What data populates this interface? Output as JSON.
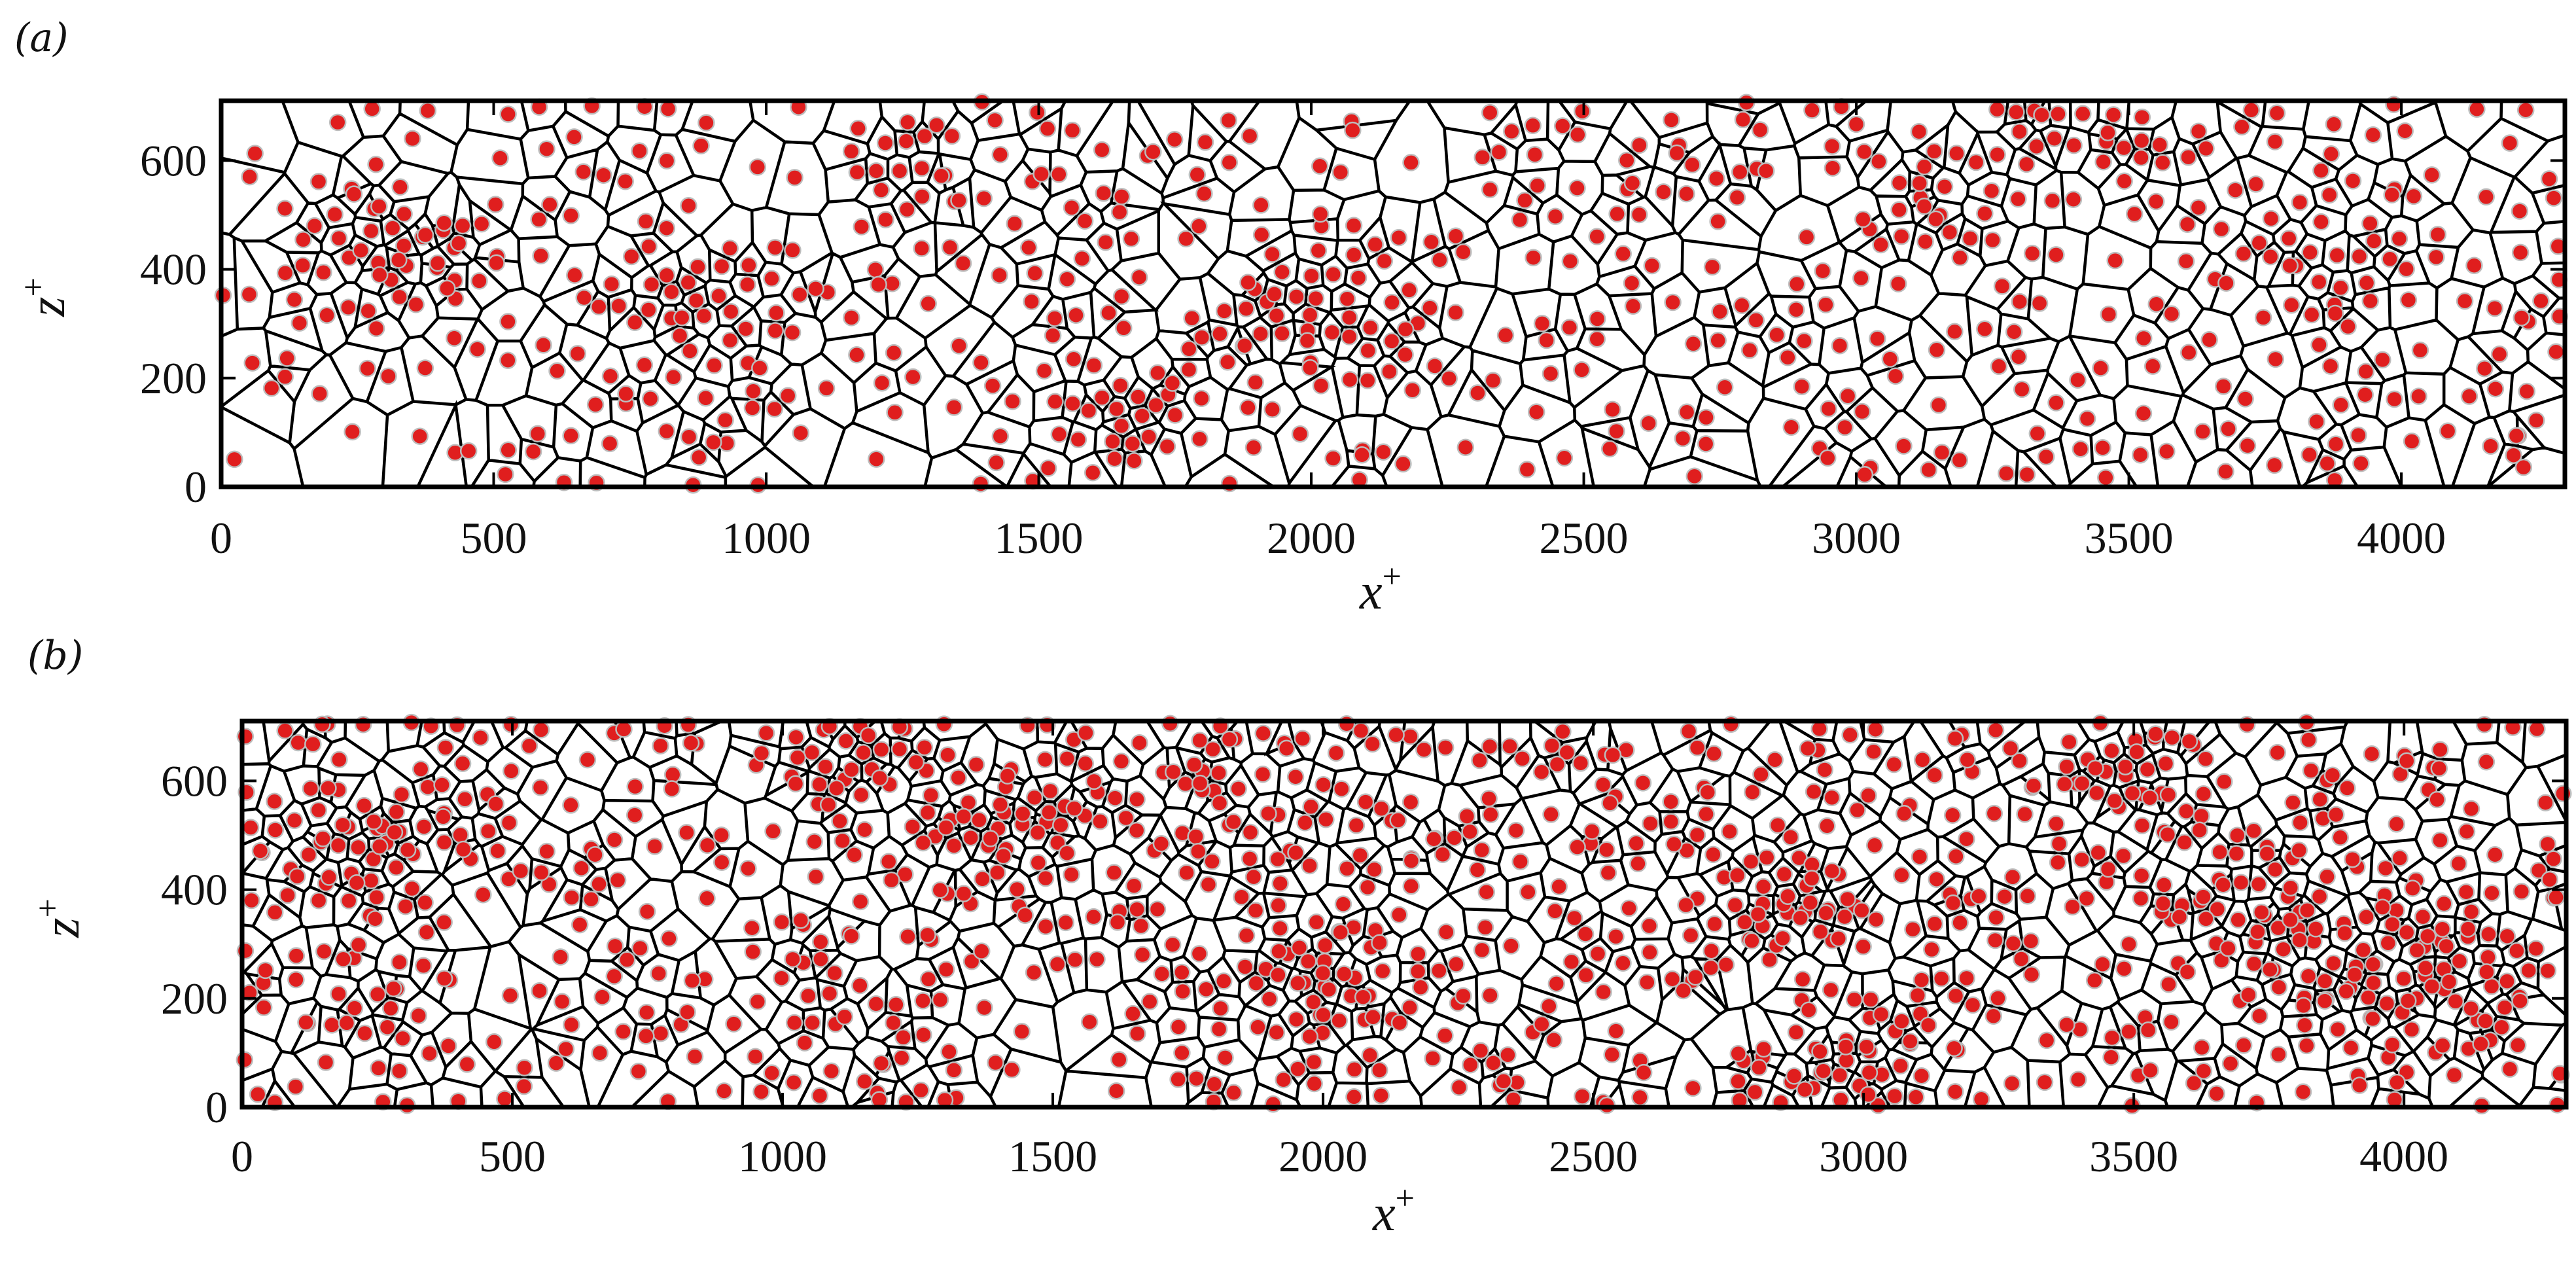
{
  "chart_data": [
    {
      "panel_label": "(a)",
      "type": "scatter",
      "description": "Voronoi tessellation of particle positions (red dots) in the x+–z+ plane",
      "xlabel": "x+",
      "ylabel": "z+",
      "xlim": [
        0,
        4300
      ],
      "ylim": [
        0,
        710
      ],
      "xticks": [
        "0",
        "500",
        "1000",
        "1500",
        "2000",
        "2500",
        "3000",
        "3500",
        "4000"
      ],
      "yticks": [
        "0",
        "200",
        "400",
        "600"
      ],
      "n_points": 680,
      "seed": 11,
      "clusters": [
        {
          "x": 340,
          "z": 420,
          "s": 55,
          "w": 2
        },
        {
          "x": 880,
          "z": 340,
          "s": 50,
          "w": 2
        },
        {
          "x": 1620,
          "z": 120,
          "s": 45,
          "w": 2
        },
        {
          "x": 2010,
          "z": 300,
          "s": 60,
          "w": 3
        },
        {
          "x": 1280,
          "z": 560,
          "s": 50,
          "w": 1
        },
        {
          "x": 3450,
          "z": 640,
          "s": 55,
          "w": 2
        },
        {
          "x": 3870,
          "z": 400,
          "s": 60,
          "w": 2
        },
        {
          "x": 3120,
          "z": 520,
          "s": 50,
          "w": 1
        }
      ],
      "point_color": "#e01e1e"
    },
    {
      "panel_label": "(b)",
      "type": "scatter",
      "description": "Voronoi tessellation of particle positions (red dots) in the x+–z+ plane",
      "xlabel": "x+",
      "ylabel": "z+",
      "xlim": [
        0,
        4300
      ],
      "ylim": [
        0,
        710
      ],
      "xticks": [
        "0",
        "500",
        "1000",
        "1500",
        "2000",
        "2500",
        "3000",
        "3500",
        "4000"
      ],
      "yticks": [
        "0",
        "200",
        "400",
        "600"
      ],
      "n_points": 1080,
      "seed": 29,
      "clusters": [
        {
          "x": 260,
          "z": 480,
          "s": 60,
          "w": 2
        },
        {
          "x": 1380,
          "z": 520,
          "s": 50,
          "w": 2
        },
        {
          "x": 2000,
          "z": 230,
          "s": 60,
          "w": 2
        },
        {
          "x": 3480,
          "z": 620,
          "s": 50,
          "w": 2
        },
        {
          "x": 4020,
          "z": 240,
          "s": 75,
          "w": 3
        },
        {
          "x": 2840,
          "z": 380,
          "s": 55,
          "w": 2
        },
        {
          "x": 1760,
          "z": 560,
          "s": 50,
          "w": 1
        },
        {
          "x": 2950,
          "z": 60,
          "s": 60,
          "w": 2
        },
        {
          "x": 3700,
          "z": 360,
          "s": 60,
          "w": 2
        },
        {
          "x": 1100,
          "z": 640,
          "s": 45,
          "w": 1
        }
      ],
      "point_color": "#e01e1e"
    }
  ]
}
